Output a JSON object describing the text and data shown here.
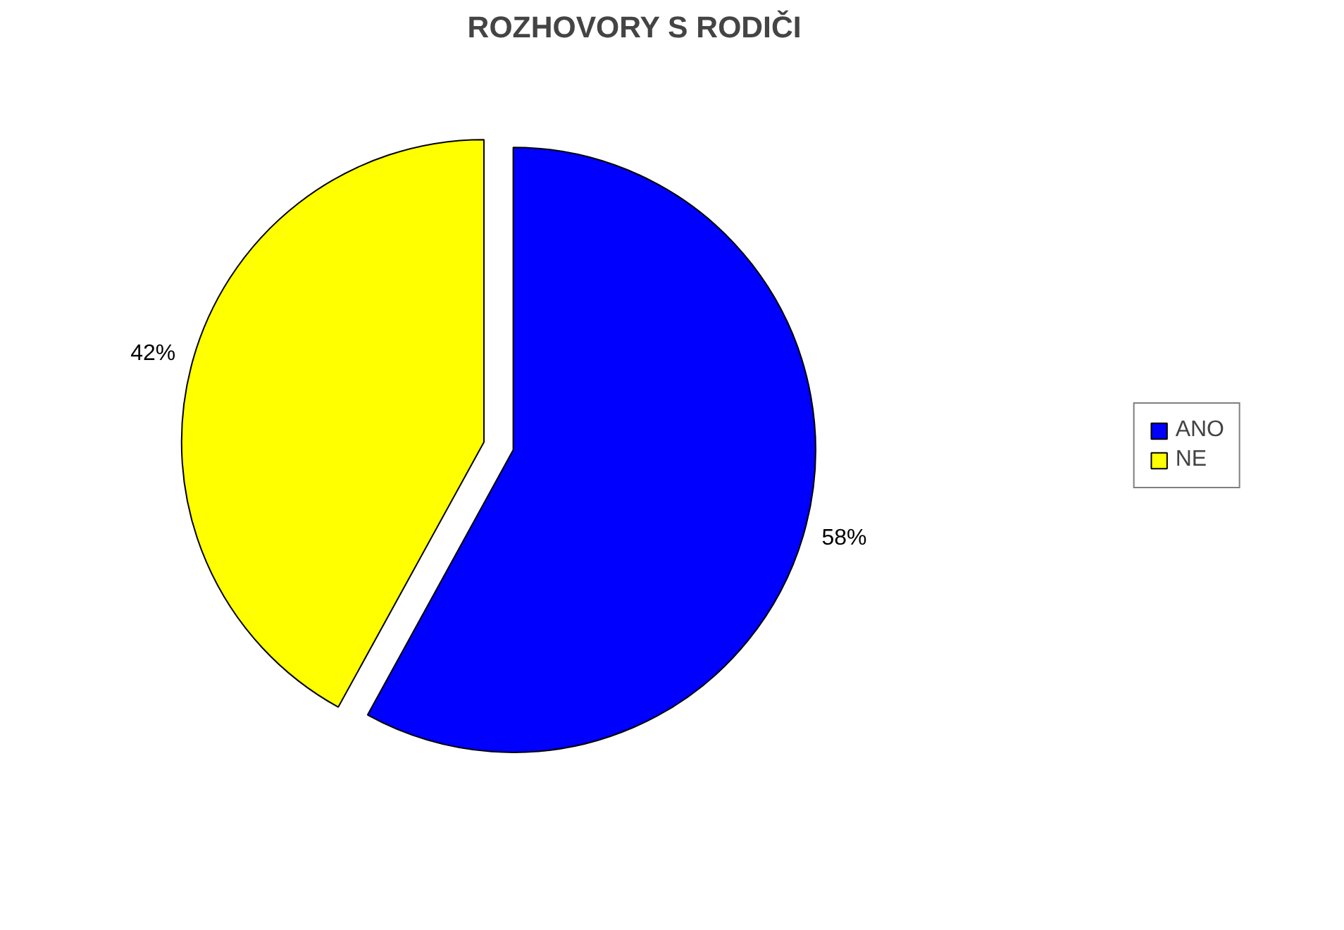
{
  "chart_data": {
    "type": "pie",
    "title": "ROZHOVORY S RODIČI",
    "categories": [
      "ANO",
      "NE"
    ],
    "values": [
      58,
      42
    ],
    "colors": [
      "#0000ff",
      "#ffff00"
    ],
    "value_labels": [
      "58%",
      "42%"
    ],
    "legend": "right"
  }
}
